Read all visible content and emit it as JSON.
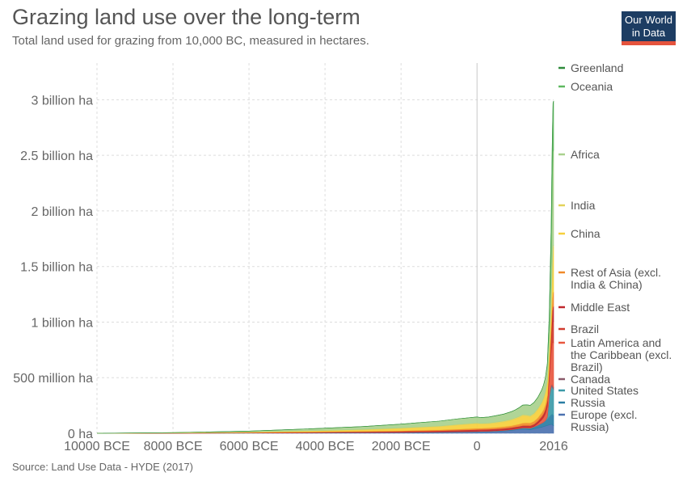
{
  "header": {
    "title": "Grazing land use over the long-term",
    "subtitle": "Total land used for grazing from 10,000 BC, measured in hectares.",
    "logo_line1": "Our World",
    "logo_line2": "in Data"
  },
  "footer": {
    "source": "Source: Land Use Data - HYDE (2017)"
  },
  "colors": {
    "Europe (excl. Russia)": "#4c72b0",
    "Russia": "#2a7da3",
    "United States": "#3c9aa8",
    "Canada": "#8a5a6a",
    "Latin America and the Caribbean (excl. Brazil)": "#e8573f",
    "Brazil": "#d13b2e",
    "Middle East": "#c0272d",
    "Rest of Asia (excl. India & China)": "#f08a2a",
    "China": "#f6cf3c",
    "India": "#e3d25a",
    "Africa": "#a9d18e",
    "Oceania": "#5fb860",
    "Greenland": "#2e8b3a"
  },
  "chart_data": {
    "type": "area",
    "stacked": true,
    "title": "Grazing land use over the long-term",
    "subtitle": "Total land used for grazing from 10,000 BC, measured in hectares.",
    "x_tick_values": [
      -10000,
      -8000,
      -6000,
      -4000,
      -2000,
      0,
      2016
    ],
    "x_tick_labels": [
      "10000 BCE",
      "8000 BCE",
      "6000 BCE",
      "4000 BCE",
      "2000 BCE",
      "0",
      "2016"
    ],
    "y_tick_values": [
      0,
      500000000,
      1000000000,
      1500000000,
      2000000000,
      2500000000,
      3000000000
    ],
    "y_tick_labels": [
      "0 ha",
      "500 million ha",
      "1 billion ha",
      "1.5 billion ha",
      "2 billion ha",
      "2.5 billion ha",
      "3 billion ha"
    ],
    "xlim": [
      -10000,
      2016
    ],
    "ylim": [
      0,
      3330000000
    ],
    "grid": true,
    "legend_position": "right",
    "x": [
      -10000,
      -8000,
      -6000,
      -5000,
      -4000,
      -3000,
      -2000,
      -1000,
      -500,
      0,
      100,
      300,
      500,
      700,
      900,
      1000,
      1100,
      1200,
      1300,
      1400,
      1500,
      1600,
      1700,
      1750,
      1800,
      1850,
      1900,
      1950,
      1980,
      2000,
      2016
    ],
    "series": [
      {
        "name": "Europe (excl. Russia)",
        "values": [
          0,
          500000,
          2000000,
          3000000,
          4000000,
          5000000,
          6000000,
          8000000,
          10000000,
          12000000,
          13000000,
          14000000,
          16000000,
          20000000,
          26000000,
          30000000,
          34000000,
          38000000,
          36000000,
          32000000,
          40000000,
          48000000,
          55000000,
          60000000,
          65000000,
          70000000,
          76000000,
          80000000,
          80000000,
          70000000,
          68000000
        ]
      },
      {
        "name": "Russia",
        "values": [
          0,
          100000,
          500000,
          800000,
          1000000,
          1500000,
          2000000,
          3000000,
          3500000,
          4000000,
          4000000,
          4500000,
          5000000,
          5500000,
          6000000,
          7000000,
          8000000,
          10000000,
          12000000,
          14000000,
          18000000,
          25000000,
          35000000,
          40000000,
          48000000,
          55000000,
          70000000,
          85000000,
          92000000,
          92000000,
          92000000
        ]
      },
      {
        "name": "United States",
        "values": [
          0,
          0,
          0,
          0,
          0,
          0,
          0,
          0,
          0,
          0,
          0,
          0,
          0,
          0,
          0,
          0,
          0,
          0,
          0,
          0,
          0,
          0,
          0,
          0,
          1000000,
          20000000,
          180000000,
          250000000,
          245000000,
          240000000,
          235000000
        ]
      },
      {
        "name": "Canada",
        "values": [
          0,
          0,
          0,
          0,
          0,
          0,
          0,
          0,
          0,
          0,
          0,
          0,
          0,
          0,
          0,
          0,
          0,
          0,
          0,
          0,
          0,
          0,
          0,
          0,
          0,
          2000000,
          10000000,
          18000000,
          20000000,
          19000000,
          19000000
        ]
      },
      {
        "name": "Latin America and the Caribbean (excl. Brazil)",
        "values": [
          0,
          100000,
          300000,
          500000,
          800000,
          1200000,
          1500000,
          2000000,
          2500000,
          3000000,
          3000000,
          3200000,
          3500000,
          3800000,
          4000000,
          4200000,
          4500000,
          5000000,
          5500000,
          6000000,
          6000000,
          15000000,
          30000000,
          40000000,
          60000000,
          90000000,
          150000000,
          300000000,
          380000000,
          400000000,
          400000000
        ]
      },
      {
        "name": "Brazil",
        "values": [
          0,
          0,
          0,
          0,
          0,
          0,
          0,
          0,
          0,
          0,
          0,
          0,
          0,
          0,
          0,
          0,
          0,
          0,
          0,
          0,
          0,
          2000000,
          8000000,
          12000000,
          15000000,
          20000000,
          35000000,
          80000000,
          160000000,
          190000000,
          195000000
        ]
      },
      {
        "name": "Middle East",
        "values": [
          0,
          1000000,
          3000000,
          4000000,
          5000000,
          6000000,
          8000000,
          10000000,
          12000000,
          14000000,
          14000000,
          14000000,
          15000000,
          15000000,
          16000000,
          16000000,
          16000000,
          16000000,
          17000000,
          17000000,
          18000000,
          20000000,
          22000000,
          24000000,
          28000000,
          35000000,
          50000000,
          80000000,
          120000000,
          130000000,
          130000000
        ]
      },
      {
        "name": "Rest of Asia (excl. India & China)",
        "values": [
          0,
          500000,
          2000000,
          3000000,
          4000000,
          5000000,
          6000000,
          8000000,
          10000000,
          12000000,
          12000000,
          13000000,
          14000000,
          15000000,
          16000000,
          18000000,
          20000000,
          23000000,
          24000000,
          24000000,
          26000000,
          30000000,
          34000000,
          38000000,
          42000000,
          48000000,
          60000000,
          80000000,
          110000000,
          130000000,
          130000000
        ]
      },
      {
        "name": "China",
        "values": [
          0,
          1000000,
          3000000,
          5000000,
          8000000,
          12000000,
          20000000,
          28000000,
          35000000,
          40000000,
          35000000,
          35000000,
          38000000,
          42000000,
          48000000,
          52000000,
          58000000,
          65000000,
          60000000,
          55000000,
          62000000,
          70000000,
          80000000,
          90000000,
          100000000,
          110000000,
          120000000,
          150000000,
          280000000,
          400000000,
          400000000
        ]
      },
      {
        "name": "India",
        "values": [
          0,
          500000,
          1000000,
          2000000,
          3000000,
          4000000,
          5000000,
          6000000,
          7000000,
          8000000,
          8000000,
          8000000,
          9000000,
          9000000,
          10000000,
          10000000,
          10000000,
          11000000,
          11000000,
          11000000,
          12000000,
          13000000,
          14000000,
          15000000,
          16000000,
          17000000,
          18000000,
          20000000,
          20000000,
          20000000,
          20000000
        ]
      },
      {
        "name": "Africa",
        "values": [
          0,
          2000000,
          8000000,
          14000000,
          20000000,
          26000000,
          34000000,
          44000000,
          50000000,
          54000000,
          52000000,
          54000000,
          58000000,
          62000000,
          68000000,
          72000000,
          78000000,
          85000000,
          90000000,
          92000000,
          95000000,
          100000000,
          110000000,
          115000000,
          125000000,
          140000000,
          180000000,
          400000000,
          700000000,
          840000000,
          860000000
        ]
      },
      {
        "name": "Oceania",
        "values": [
          0,
          0,
          0,
          0,
          0,
          0,
          0,
          0,
          0,
          0,
          0,
          0,
          0,
          0,
          0,
          0,
          0,
          0,
          0,
          0,
          0,
          0,
          0,
          0,
          1000000,
          20000000,
          100000000,
          300000000,
          420000000,
          440000000,
          440000000
        ]
      },
      {
        "name": "Greenland",
        "values": [
          0,
          0,
          0,
          0,
          0,
          0,
          0,
          0,
          0,
          0,
          0,
          0,
          0,
          0,
          0,
          0,
          0,
          0,
          0,
          0,
          0,
          0,
          0,
          0,
          0,
          0,
          100000,
          200000,
          200000,
          200000,
          240000
        ]
      }
    ],
    "legend_order_top_to_bottom": [
      "Greenland",
      "Oceania",
      "Africa",
      "India",
      "China",
      "Rest of Asia (excl. India & China)",
      "Middle East",
      "Brazil",
      "Latin America and the Caribbean (excl. Brazil)",
      "Canada",
      "United States",
      "Russia",
      "Europe (excl. Russia)"
    ]
  }
}
